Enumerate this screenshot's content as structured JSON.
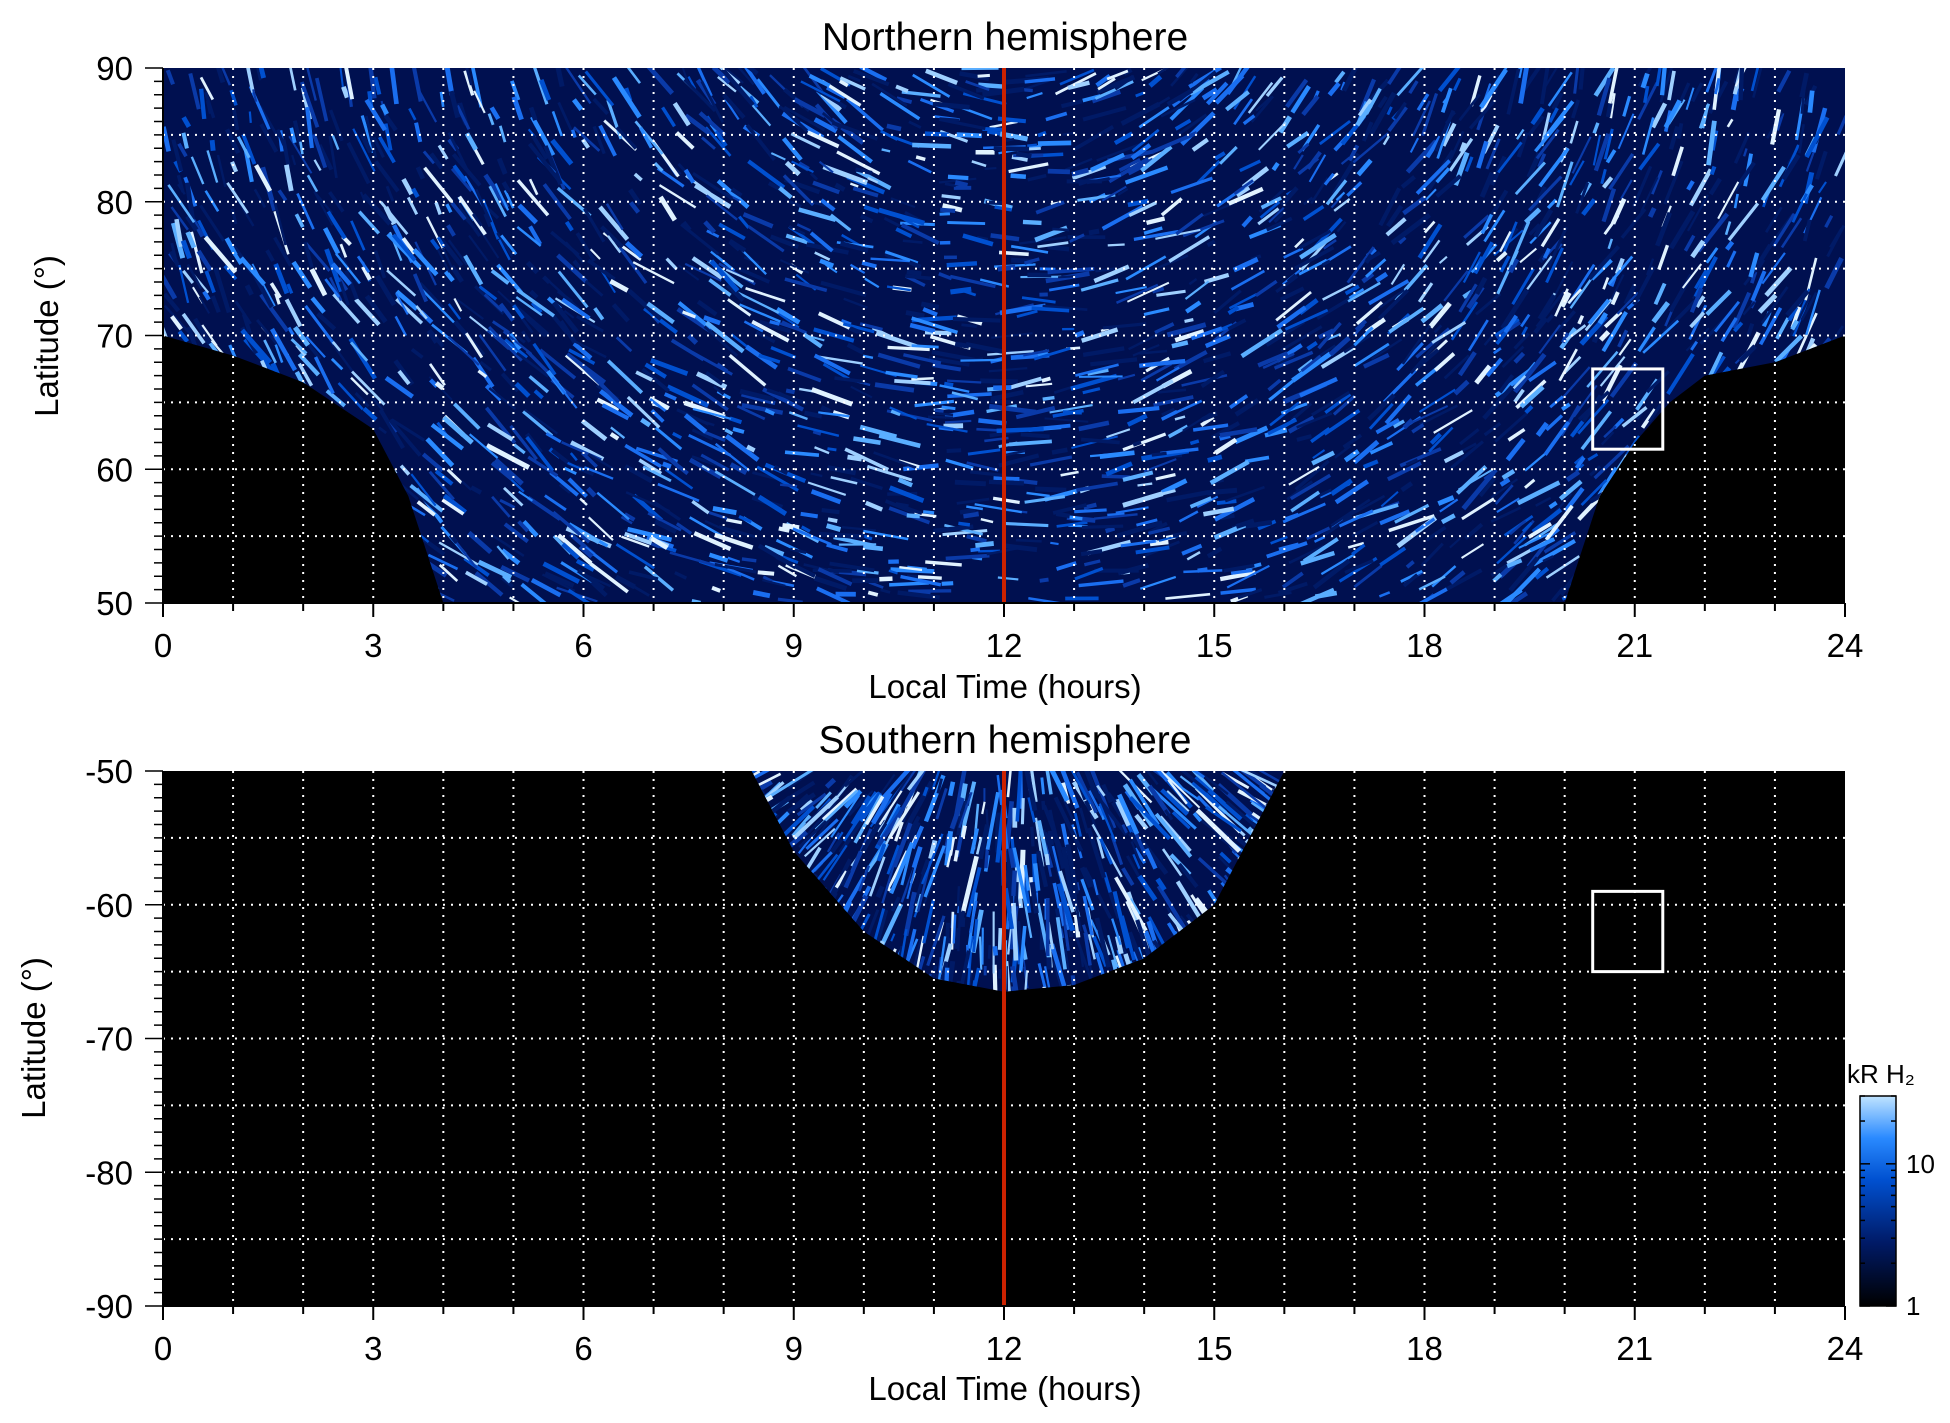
{
  "chart_data": [
    {
      "type": "heatmap",
      "title": "Northern hemisphere",
      "xlabel": "Local Time (hours)",
      "ylabel": "Latitude (°)",
      "xlim": [
        0,
        24
      ],
      "ylim": [
        50,
        90
      ],
      "xticks": [
        "0",
        "3",
        "6",
        "9",
        "12",
        "15",
        "18",
        "21",
        "24"
      ],
      "yticks": [
        "50",
        "60",
        "70",
        "80",
        "90"
      ],
      "grid": true,
      "noon_line_local_time": 12,
      "box": {
        "local_time": [
          20.4,
          21.4
        ],
        "latitude": [
          61.5,
          67.5
        ]
      },
      "coverage_boundary": [
        [
          0,
          70
        ],
        [
          1,
          68.5
        ],
        [
          2,
          66.5
        ],
        [
          3,
          63
        ],
        [
          3.5,
          58
        ],
        [
          4,
          50
        ],
        [
          20,
          50
        ],
        [
          20.5,
          58
        ],
        [
          21,
          62
        ],
        [
          21.5,
          65
        ],
        [
          22,
          67
        ],
        [
          23,
          68
        ],
        [
          24,
          70
        ]
      ]
    },
    {
      "type": "heatmap",
      "title": "Southern hemisphere",
      "xlabel": "Local Time (hours)",
      "ylabel": "Latitude (°)",
      "xlim": [
        0,
        24
      ],
      "ylim": [
        -90,
        -50
      ],
      "xticks": [
        "0",
        "3",
        "6",
        "9",
        "12",
        "15",
        "18",
        "21",
        "24"
      ],
      "yticks": [
        "-50",
        "-60",
        "-70",
        "-80",
        "-90"
      ],
      "grid": true,
      "noon_line_local_time": 12,
      "box": {
        "local_time": [
          20.4,
          21.4
        ],
        "latitude": [
          -65,
          -59
        ]
      },
      "coverage_boundary": [
        [
          8.4,
          -50
        ],
        [
          9,
          -56
        ],
        [
          10,
          -62
        ],
        [
          11,
          -65.5
        ],
        [
          12,
          -66.5
        ],
        [
          13,
          -66
        ],
        [
          14,
          -64
        ],
        [
          15,
          -60
        ],
        [
          16,
          -50
        ]
      ]
    }
  ],
  "colorbar": {
    "label": "kR H₂",
    "scale": "log",
    "range": [
      1,
      30
    ],
    "ticks": [
      "1",
      "10"
    ],
    "colors": [
      "#000000",
      "#001a66",
      "#0050d0",
      "#2a8aff",
      "#bfe3ff"
    ]
  },
  "colors": {
    "noon_line": "#cc2200",
    "grid": "#ffffff",
    "box": "#ffffff",
    "background": "#000000"
  }
}
